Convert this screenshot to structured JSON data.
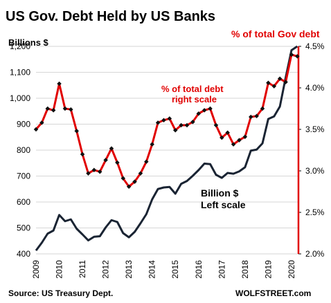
{
  "chart_data": {
    "type": "line",
    "title": "US Gov. Debt Held by US Banks",
    "left_axis": {
      "label": "Billions  $",
      "ylim": [
        400,
        1200
      ],
      "ticks": [
        "1,200",
        "1,100",
        "1,000",
        "900",
        "800",
        "700",
        "600",
        "500",
        "400"
      ],
      "tick_values": [
        1200,
        1100,
        1000,
        900,
        800,
        700,
        600,
        500,
        400
      ]
    },
    "right_axis": {
      "label": "% of total Gov debt",
      "ylim": [
        2.0,
        4.5
      ],
      "ticks": [
        "4.5%",
        "4.0%",
        "3.5%",
        "3.0%",
        "2.5%",
        "2.0%"
      ],
      "tick_values": [
        4.5,
        4.0,
        3.5,
        3.0,
        2.5,
        2.0
      ]
    },
    "x_axis": {
      "ticks": [
        "2009",
        "2010",
        "2011",
        "2012",
        "2013",
        "2014",
        "2015",
        "2016",
        "2017",
        "2018",
        "2019",
        "2020"
      ],
      "tick_values": [
        2009,
        2010,
        2011,
        2012,
        2013,
        2014,
        2015,
        2016,
        2017,
        2018,
        2019,
        2020
      ],
      "xlim": [
        2009.0,
        2020.3
      ]
    },
    "grid": "horizontal",
    "series": [
      {
        "name": "Billion $ Left scale",
        "axis": "left",
        "color": "#1a2433",
        "points": [
          [
            2009.0,
            413
          ],
          [
            2009.25,
            443
          ],
          [
            2009.5,
            478
          ],
          [
            2009.75,
            490
          ],
          [
            2010.0,
            550
          ],
          [
            2010.25,
            526
          ],
          [
            2010.5,
            533
          ],
          [
            2010.75,
            497
          ],
          [
            2011.0,
            475
          ],
          [
            2011.25,
            452
          ],
          [
            2011.5,
            466
          ],
          [
            2011.75,
            468
          ],
          [
            2012.0,
            502
          ],
          [
            2012.25,
            530
          ],
          [
            2012.5,
            523
          ],
          [
            2012.75,
            480
          ],
          [
            2013.0,
            464
          ],
          [
            2013.25,
            485
          ],
          [
            2013.5,
            518
          ],
          [
            2013.75,
            553
          ],
          [
            2014.0,
            610
          ],
          [
            2014.25,
            650
          ],
          [
            2014.5,
            656
          ],
          [
            2014.75,
            658
          ],
          [
            2015.0,
            632
          ],
          [
            2015.25,
            670
          ],
          [
            2015.5,
            681
          ],
          [
            2015.75,
            701
          ],
          [
            2016.0,
            723
          ],
          [
            2016.25,
            748
          ],
          [
            2016.5,
            746
          ],
          [
            2016.75,
            705
          ],
          [
            2017.0,
            693
          ],
          [
            2017.25,
            712
          ],
          [
            2017.5,
            709
          ],
          [
            2017.75,
            718
          ],
          [
            2018.0,
            734
          ],
          [
            2018.25,
            798
          ],
          [
            2018.5,
            802
          ],
          [
            2018.75,
            826
          ],
          [
            2019.0,
            920
          ],
          [
            2019.25,
            930
          ],
          [
            2019.5,
            968
          ],
          [
            2019.75,
            1080
          ],
          [
            2020.0,
            1185
          ],
          [
            2020.25,
            1200
          ]
        ]
      },
      {
        "name": "% of total debt right scale",
        "axis": "right",
        "color": "#e10000",
        "points": [
          [
            2009.0,
            3.5
          ],
          [
            2009.25,
            3.58
          ],
          [
            2009.5,
            3.75
          ],
          [
            2009.75,
            3.73
          ],
          [
            2010.0,
            4.05
          ],
          [
            2010.25,
            3.75
          ],
          [
            2010.5,
            3.74
          ],
          [
            2010.75,
            3.48
          ],
          [
            2011.0,
            3.2
          ],
          [
            2011.25,
            2.97
          ],
          [
            2011.5,
            3.01
          ],
          [
            2011.75,
            2.99
          ],
          [
            2012.0,
            3.13
          ],
          [
            2012.25,
            3.27
          ],
          [
            2012.5,
            3.1
          ],
          [
            2012.75,
            2.91
          ],
          [
            2013.0,
            2.81
          ],
          [
            2013.25,
            2.87
          ],
          [
            2013.5,
            2.97
          ],
          [
            2013.75,
            3.11
          ],
          [
            2014.0,
            3.32
          ],
          [
            2014.25,
            3.58
          ],
          [
            2014.5,
            3.61
          ],
          [
            2014.75,
            3.63
          ],
          [
            2015.0,
            3.49
          ],
          [
            2015.25,
            3.55
          ],
          [
            2015.5,
            3.55
          ],
          [
            2015.75,
            3.59
          ],
          [
            2016.0,
            3.69
          ],
          [
            2016.25,
            3.73
          ],
          [
            2016.5,
            3.75
          ],
          [
            2016.75,
            3.55
          ],
          [
            2017.0,
            3.4
          ],
          [
            2017.25,
            3.46
          ],
          [
            2017.5,
            3.32
          ],
          [
            2017.75,
            3.37
          ],
          [
            2018.0,
            3.41
          ],
          [
            2018.25,
            3.65
          ],
          [
            2018.5,
            3.66
          ],
          [
            2018.75,
            3.75
          ],
          [
            2019.0,
            4.06
          ],
          [
            2019.25,
            4.02
          ],
          [
            2019.5,
            4.11
          ],
          [
            2019.75,
            4.07
          ],
          [
            2020.0,
            4.4
          ],
          [
            2020.25,
            4.38
          ]
        ]
      }
    ],
    "annotations": {
      "red_label_line1": "% of total debt",
      "red_label_line2": "right scale",
      "black_label_line1": "Billion $",
      "black_label_line2": "Left scale"
    },
    "source": "Source: US Treasury Dept.",
    "watermark": "WOLFSTREET.com",
    "colors": {
      "red": "#e10000",
      "navy": "#1a2433",
      "grid": "#d6d6d6"
    }
  }
}
